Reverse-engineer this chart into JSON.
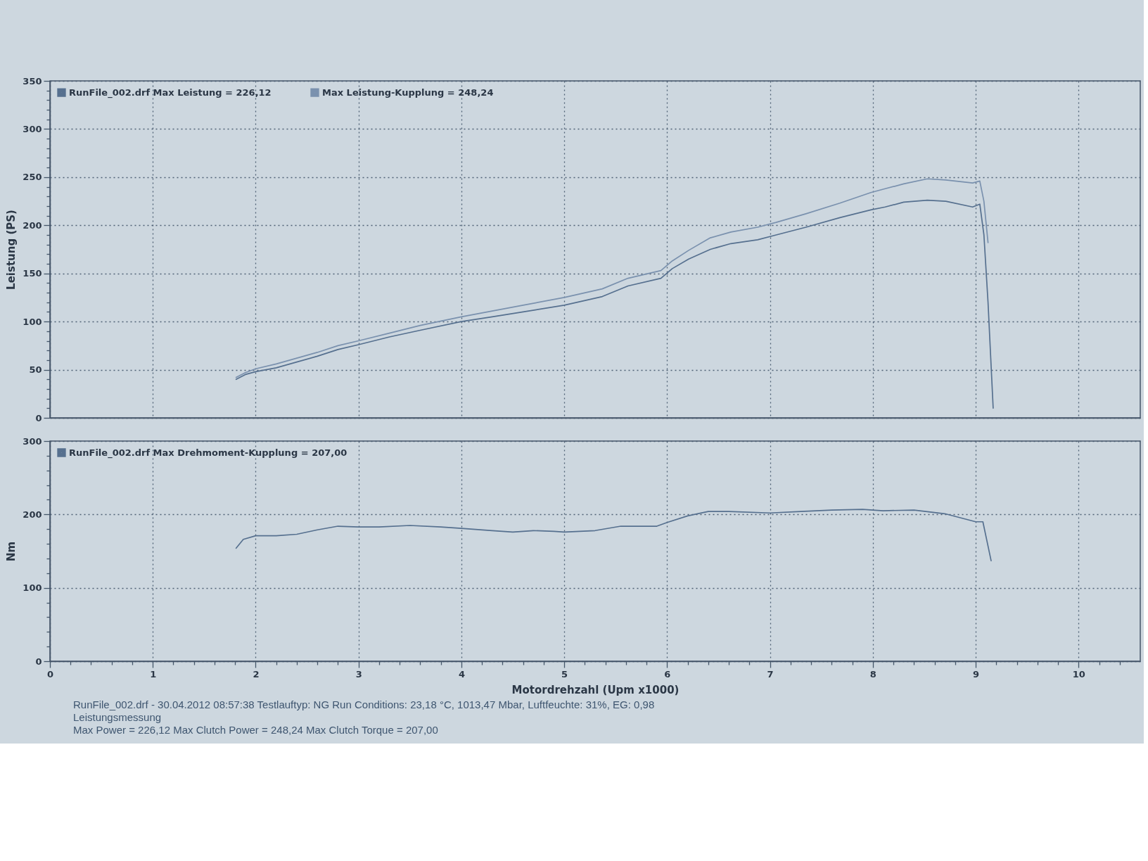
{
  "chart_data": [
    {
      "type": "line",
      "ylabel": "Leistung (PS)",
      "xlim": [
        0,
        10.6
      ],
      "xticks": [
        0,
        1,
        2,
        3,
        4,
        5,
        6,
        7,
        8,
        9,
        10
      ],
      "ylim": [
        0,
        350
      ],
      "yticks": [
        0,
        {
          "value": 10,
          "label": null
        },
        {
          "value": 20,
          "label": null
        },
        {
          "value": 30,
          "label": null
        },
        {
          "value": 40,
          "label": null
        },
        50,
        {
          "value": 60,
          "label": null
        },
        {
          "value": 70,
          "label": null
        },
        {
          "value": 80,
          "label": null
        },
        {
          "value": 90,
          "label": null
        },
        100,
        {
          "value": 110,
          "label": null
        },
        {
          "value": 120,
          "label": null
        },
        {
          "value": 130,
          "label": null
        },
        {
          "value": 140,
          "label": null
        },
        150,
        {
          "value": 160,
          "label": null
        },
        {
          "value": 170,
          "label": null
        },
        {
          "value": 180,
          "label": null
        },
        {
          "value": 190,
          "label": null
        },
        200,
        {
          "value": 210,
          "label": null
        },
        {
          "value": 220,
          "label": null
        },
        {
          "value": 230,
          "label": null
        },
        {
          "value": 240,
          "label": null
        },
        250,
        {
          "value": 260,
          "label": null
        },
        {
          "value": 270,
          "label": null
        },
        {
          "value": 280,
          "label": null
        },
        {
          "value": 290,
          "label": null
        },
        300,
        {
          "value": 310,
          "label": null
        },
        {
          "value": 320,
          "label": null
        },
        {
          "value": 330,
          "label": null
        },
        {
          "value": 340,
          "label": null
        },
        350
      ],
      "grid": true,
      "legend": "top left",
      "tick_labels": "y",
      "series": [
        {
          "name": "RunFile_002.drf Max Leistung = 226,12",
          "color": "#56708f",
          "x": [
            1.81,
            1.9,
            2.0,
            2.2,
            2.4,
            2.6,
            2.8,
            3.0,
            3.3,
            3.6,
            4.0,
            4.3,
            4.6,
            5.0,
            5.37,
            5.62,
            5.94,
            6.05,
            6.21,
            6.42,
            6.62,
            6.88,
            7.06,
            7.35,
            7.68,
            7.98,
            8.12,
            8.3,
            8.53,
            8.71,
            8.97,
            9.04,
            9.08,
            9.12,
            9.17
          ],
          "values": [
            40,
            45,
            48,
            52,
            58,
            64,
            71,
            76,
            84,
            91,
            100,
            105,
            110,
            117,
            126,
            137,
            145,
            155,
            165,
            175,
            181,
            185,
            190,
            198,
            208,
            216,
            219,
            224,
            226.12,
            225,
            219,
            222,
            190,
            120,
            10
          ]
        },
        {
          "name": "Max Leistung-Kupplung = 248,24",
          "color": "#7a91ae",
          "x": [
            1.81,
            1.9,
            2.0,
            2.2,
            2.4,
            2.6,
            2.8,
            3.0,
            3.3,
            3.6,
            4.0,
            4.3,
            4.6,
            5.0,
            5.37,
            5.62,
            5.94,
            6.05,
            6.21,
            6.42,
            6.62,
            6.88,
            7.06,
            7.35,
            7.68,
            7.98,
            8.12,
            8.3,
            8.53,
            8.71,
            8.97,
            9.04,
            9.08,
            9.12
          ],
          "values": [
            42,
            47,
            51,
            56,
            62,
            68,
            75,
            80,
            88,
            96,
            105,
            111,
            117,
            125,
            134,
            145,
            153,
            163,
            174,
            187,
            193,
            198,
            203,
            212,
            223,
            234,
            238,
            243,
            248.24,
            247,
            244,
            246,
            225,
            182
          ]
        }
      ]
    },
    {
      "type": "line",
      "xlabel": "Motordrehzahl (Upm x1000)",
      "ylabel": "Nm",
      "xlim": [
        0,
        10.6
      ],
      "xticks": [
        0,
        {
          "value": 0.2,
          "label": null
        },
        {
          "value": 0.4,
          "label": null
        },
        {
          "value": 0.6,
          "label": null
        },
        {
          "value": 0.8,
          "label": null
        },
        1,
        {
          "value": 1.2,
          "label": null
        },
        {
          "value": 1.4,
          "label": null
        },
        {
          "value": 1.6,
          "label": null
        },
        {
          "value": 1.8,
          "label": null
        },
        2,
        {
          "value": 2.2,
          "label": null
        },
        {
          "value": 2.4,
          "label": null
        },
        {
          "value": 2.6,
          "label": null
        },
        {
          "value": 2.8,
          "label": null
        },
        3,
        {
          "value": 3.2,
          "label": null
        },
        {
          "value": 3.4,
          "label": null
        },
        {
          "value": 3.6,
          "label": null
        },
        {
          "value": 3.8,
          "label": null
        },
        4,
        {
          "value": 4.2,
          "label": null
        },
        {
          "value": 4.4,
          "label": null
        },
        {
          "value": 4.6,
          "label": null
        },
        {
          "value": 4.8,
          "label": null
        },
        5,
        {
          "value": 5.2,
          "label": null
        },
        {
          "value": 5.4,
          "label": null
        },
        {
          "value": 5.6,
          "label": null
        },
        {
          "value": 5.8,
          "label": null
        },
        6,
        {
          "value": 6.2,
          "label": null
        },
        {
          "value": 6.4,
          "label": null
        },
        {
          "value": 6.6,
          "label": null
        },
        {
          "value": 6.8,
          "label": null
        },
        7,
        {
          "value": 7.2,
          "label": null
        },
        {
          "value": 7.4,
          "label": null
        },
        {
          "value": 7.6,
          "label": null
        },
        {
          "value": 7.8,
          "label": null
        },
        8,
        {
          "value": 8.2,
          "label": null
        },
        {
          "value": 8.4,
          "label": null
        },
        {
          "value": 8.6,
          "label": null
        },
        {
          "value": 8.8,
          "label": null
        },
        9,
        {
          "value": 9.2,
          "label": null
        },
        {
          "value": 9.4,
          "label": null
        },
        {
          "value": 9.6,
          "label": null
        },
        {
          "value": 9.8,
          "label": null
        },
        10,
        {
          "value": 10.2,
          "label": null
        },
        {
          "value": 10.4,
          "label": null
        }
      ],
      "ylim": [
        0,
        300
      ],
      "yticks": [
        0,
        {
          "value": 20,
          "label": null
        },
        {
          "value": 40,
          "label": null
        },
        {
          "value": 60,
          "label": null
        },
        {
          "value": 80,
          "label": null
        },
        100,
        {
          "value": 120,
          "label": null
        },
        {
          "value": 140,
          "label": null
        },
        {
          "value": 160,
          "label": null
        },
        {
          "value": 180,
          "label": null
        },
        200,
        {
          "value": 220,
          "label": null
        },
        {
          "value": 240,
          "label": null
        },
        {
          "value": 260,
          "label": null
        },
        {
          "value": 280,
          "label": null
        },
        300
      ],
      "grid": true,
      "legend": "top left",
      "series": [
        {
          "name": "RunFile_002.drf Max Drehmoment-Kupplung = 207,00",
          "color": "#56708f",
          "x": [
            1.81,
            1.88,
            2.0,
            2.2,
            2.4,
            2.6,
            2.8,
            3.0,
            3.2,
            3.5,
            3.8,
            4.0,
            4.3,
            4.5,
            4.7,
            4.9,
            5.0,
            5.3,
            5.55,
            5.9,
            6.0,
            6.2,
            6.4,
            6.6,
            7.0,
            7.3,
            7.6,
            7.9,
            8.1,
            8.4,
            8.7,
            9.0,
            9.07,
            9.15
          ],
          "values": [
            154,
            166,
            171,
            171,
            173,
            179,
            184,
            183,
            183,
            185,
            183,
            181,
            178,
            176,
            178,
            177,
            176,
            178,
            184,
            184,
            189,
            198,
            204,
            204,
            202,
            204,
            206,
            207,
            205,
            206,
            201,
            190,
            190,
            137
          ]
        }
      ],
      "annotations": [
        "RunFile_002.drf - 30.04.2012 08:57:38 Testlauftyp: NG Run Conditions: 23,18 °C, 1013,47 Mbar, Luftfeuchte: 31%, EG: 0,98",
        "Leistungsmessung",
        "Max Power = 226,12 Max Clutch Power = 248,24 Max Clutch Torque = 207,00"
      ]
    }
  ]
}
